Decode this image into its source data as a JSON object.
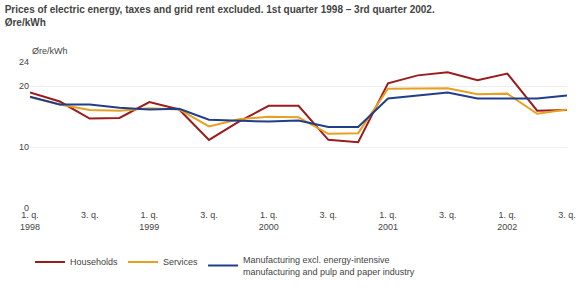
{
  "chart_data": {
    "type": "line",
    "title": "Prices of electric energy, taxes and grid rent excluded. 1st quarter 1998 – 3rd quarter 2002.",
    "subtitle": "Øre/kWh",
    "ylabel": "Øre/kWh",
    "categories": [
      "1. q.\n1998",
      null,
      "3. q.",
      null,
      "1. q.\n1999",
      null,
      "3. q.",
      null,
      "1. q.\n2000",
      null,
      "3. q.",
      null,
      "1. q.\n2001",
      null,
      "3. q.",
      null,
      "1. q.\n2002",
      null,
      "3. q."
    ],
    "series": [
      {
        "name": "Households",
        "color": "#9B1C1C",
        "values": [
          19.0,
          17.5,
          14.7,
          14.8,
          17.4,
          16.2,
          11.2,
          14.2,
          16.8,
          16.8,
          11.2,
          10.8,
          20.5,
          21.8,
          22.3,
          21.0,
          22.1,
          16.0,
          16.1
        ]
      },
      {
        "name": "Services",
        "color": "#E8A020",
        "values": [
          18.2,
          17.0,
          16.1,
          16.0,
          16.4,
          16.2,
          13.4,
          14.6,
          15.0,
          14.9,
          12.2,
          12.3,
          19.6,
          19.7,
          19.7,
          18.7,
          18.8,
          15.5,
          16.2
        ]
      },
      {
        "name": "Manufacturing excl. energy-intensive\nmanufacturing and pulp and paper industry",
        "color": "#1F3E8C",
        "values": [
          18.3,
          17.0,
          17.0,
          16.5,
          16.2,
          16.3,
          14.5,
          14.4,
          14.2,
          14.4,
          13.3,
          13.3,
          18.0,
          18.5,
          19.0,
          18.0,
          18.0,
          18.0,
          18.5
        ]
      }
    ],
    "ylim": [
      0,
      24
    ],
    "yticks": [
      0,
      10,
      20,
      24
    ],
    "grid": true,
    "legend": "bottom"
  }
}
